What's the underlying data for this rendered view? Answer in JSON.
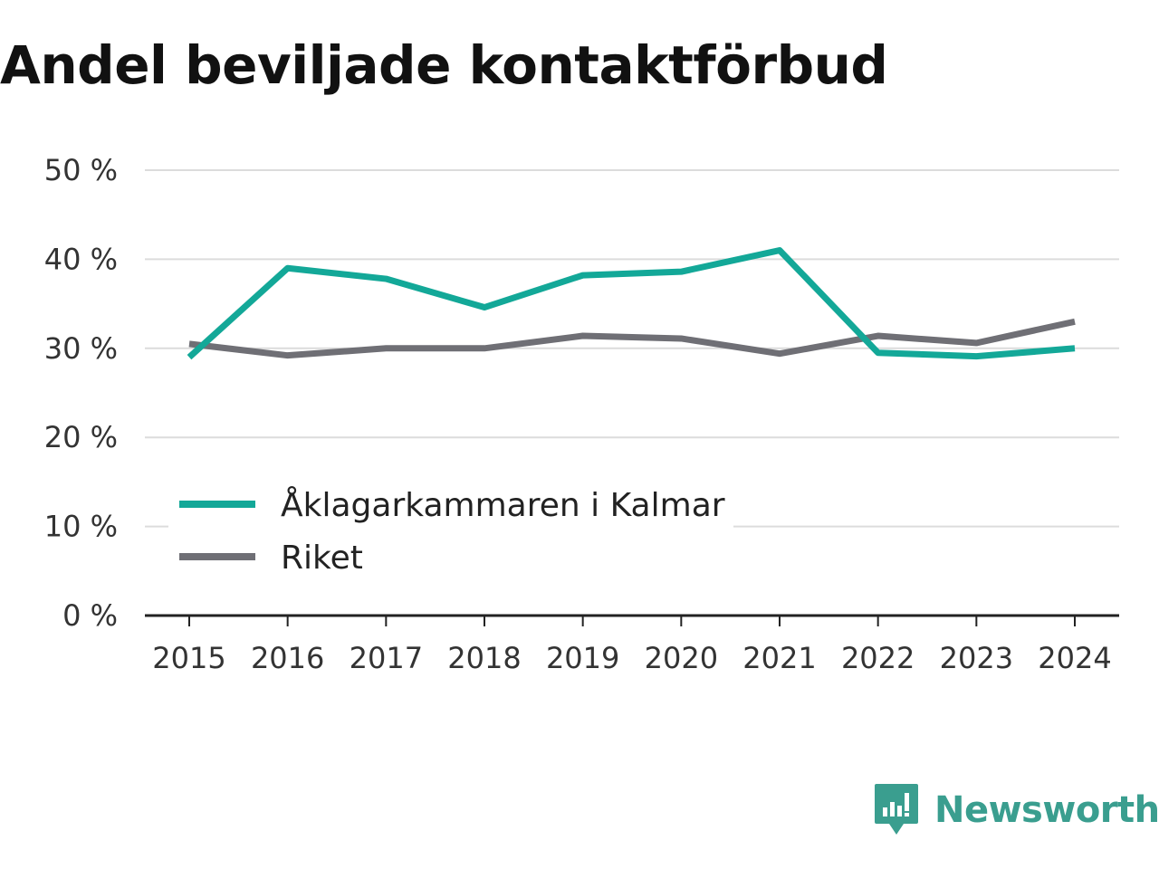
{
  "title": "Andel beviljade kontaktförbud",
  "brand": {
    "name": "Newsworthy",
    "icon": "newsworthy-logo-icon",
    "color": "#3a9e8f"
  },
  "chart_data": {
    "type": "line",
    "title": "Andel beviljade kontaktförbud",
    "xlabel": "",
    "ylabel": "",
    "categories": [
      "2015",
      "2016",
      "2017",
      "2018",
      "2019",
      "2020",
      "2021",
      "2022",
      "2023",
      "2024"
    ],
    "ylim": [
      0,
      50
    ],
    "yticks": [
      0,
      10,
      20,
      30,
      40,
      50
    ],
    "ytick_labels": [
      "0 %",
      "10 %",
      "20 %",
      "30 %",
      "40 %",
      "50 %"
    ],
    "grid": true,
    "legend_position": "bottom-left",
    "series": [
      {
        "name": "Åklagarkammaren i Kalmar",
        "color": "#13a898",
        "values": [
          29.0,
          39.0,
          37.8,
          34.6,
          38.2,
          38.6,
          41.0,
          29.5,
          29.1,
          30.0
        ]
      },
      {
        "name": "Riket",
        "color": "#6f6f75",
        "values": [
          30.5,
          29.2,
          30.0,
          30.0,
          31.4,
          31.1,
          29.4,
          31.4,
          30.6,
          33.0
        ]
      }
    ]
  }
}
